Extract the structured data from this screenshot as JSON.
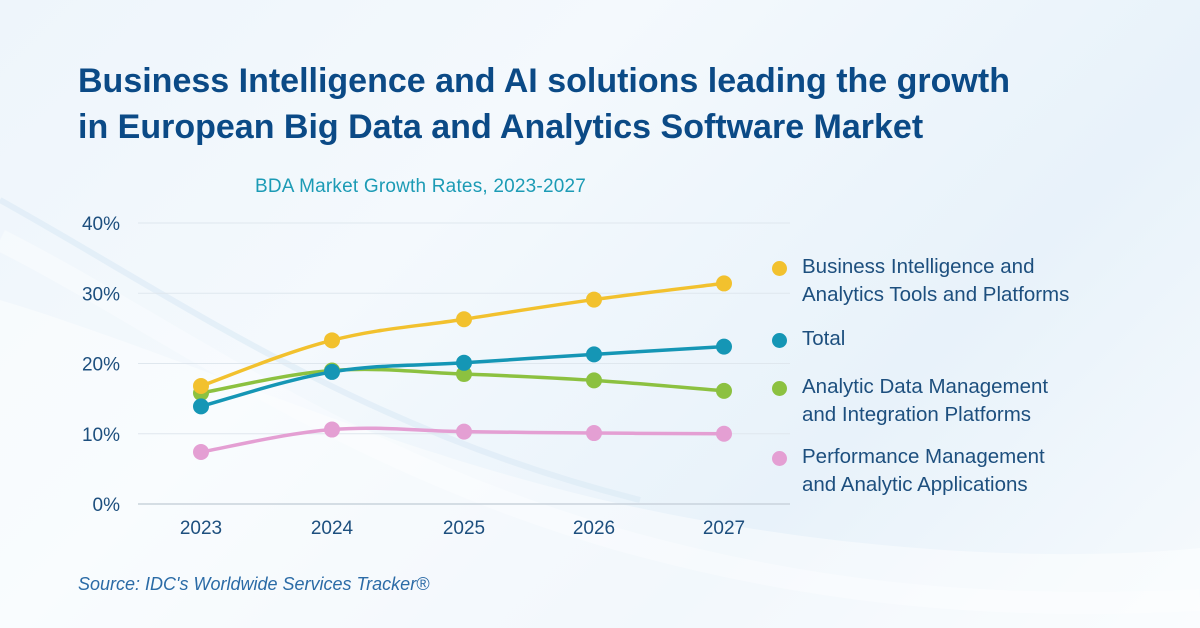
{
  "title": {
    "line1": "Business Intelligence and AI solutions leading the growth",
    "line2": "in European Big Data and Analytics Software Market"
  },
  "source": "Source: IDC's Worldwide Services Tracker®",
  "chart_data": {
    "type": "line",
    "title": "BDA Market Growth Rates, 2023-2027",
    "xlabel": "",
    "ylabel": "",
    "categories": [
      "2023",
      "2024",
      "2025",
      "2026",
      "2027"
    ],
    "ylim": [
      0,
      40
    ],
    "yticks": [
      0,
      10,
      20,
      30,
      40
    ],
    "ytick_labels": [
      "0%",
      "10%",
      "20%",
      "30%",
      "40%"
    ],
    "grid": true,
    "legend_position": "right",
    "series": [
      {
        "name": "Business Intelligence and Analytics Tools and Platforms",
        "label_lines": [
          "Business Intelligence and",
          "Analytics Tools and Platforms"
        ],
        "color": "#f2c12e",
        "values": [
          16.8,
          23.3,
          26.3,
          29.1,
          31.4
        ]
      },
      {
        "name": "Total",
        "label_lines": [
          "Total"
        ],
        "color": "#1596b5",
        "values": [
          13.9,
          18.8,
          20.1,
          21.3,
          22.4
        ]
      },
      {
        "name": "Analytic Data Management and Integration Platforms",
        "label_lines": [
          "Analytic Data Management",
          "and Integration Platforms"
        ],
        "color": "#8cc140",
        "values": [
          15.8,
          19.0,
          18.5,
          17.6,
          16.1
        ]
      },
      {
        "name": "Performance Management and Analytic Applications",
        "label_lines": [
          "Performance Management",
          "and Analytic Applications"
        ],
        "color": "#e49fd3",
        "values": [
          7.4,
          10.6,
          10.3,
          10.1,
          10.0
        ]
      }
    ]
  }
}
